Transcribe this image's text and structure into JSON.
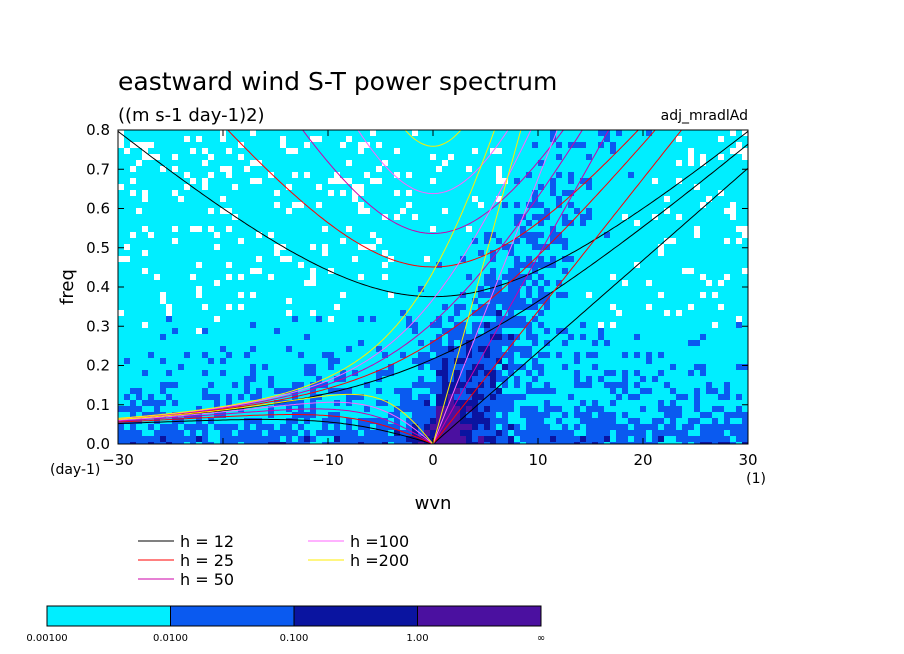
{
  "chart_data": {
    "type": "heatmap",
    "title": "eastward wind S-T power spectrum",
    "subtitle": "((m s-1 day-1)2)",
    "tag": "adj_mradlAd",
    "xlabel": "wvn",
    "ylabel": "freq",
    "x_unit": "(1)",
    "y_unit": "(day-1)",
    "xlim": [
      -30,
      30
    ],
    "ylim": [
      0,
      0.8
    ],
    "xticks": [
      -30,
      -20,
      -10,
      0,
      10,
      20,
      30
    ],
    "yticks": [
      0.0,
      0.1,
      0.2,
      0.3,
      0.4,
      0.5,
      0.6,
      0.7,
      0.8
    ],
    "xtick_labels": [
      "−30",
      "−20",
      "−10",
      "0",
      "10",
      "20",
      "30"
    ],
    "ytick_labels": [
      "0.0",
      "0.1",
      "0.2",
      "0.3",
      "0.4",
      "0.5",
      "0.6",
      "0.7",
      "0.8"
    ],
    "contour_levels": [
      "0.00100",
      "0.0100",
      "0.100",
      "1.00",
      "∞"
    ],
    "level_colors": [
      "#00eeff",
      "#0a5af0",
      "#0a14a0",
      "#4b10a0"
    ],
    "below_color": "#ffffff",
    "dispersion_legend": [
      {
        "label": "h = 12",
        "h": 12,
        "color": "#000000"
      },
      {
        "label": "h = 25",
        "h": 25,
        "color": "#ff0000"
      },
      {
        "label": "h = 50",
        "h": 50,
        "color": "#cc00aa"
      },
      {
        "label": "h =100",
        "h": 100,
        "color": "#ff66ff"
      },
      {
        "label": "h =200",
        "h": 200,
        "color": "#ffee00"
      }
    ]
  }
}
